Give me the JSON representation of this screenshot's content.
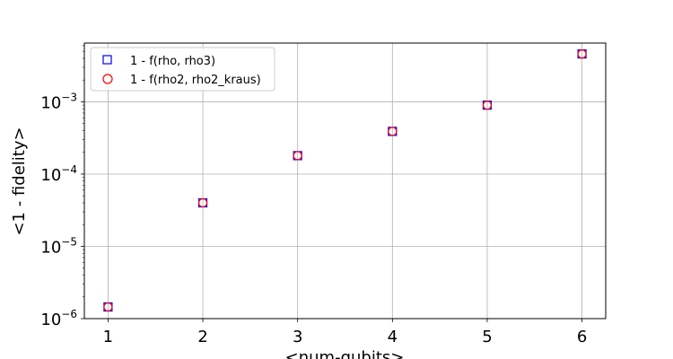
{
  "chart_data": {
    "type": "scatter",
    "xlabel": "<num-qubits>",
    "ylabel": "<1 - fidelity>",
    "x_ticks": [
      1,
      2,
      3,
      4,
      5,
      6
    ],
    "x_range": [
      0.75,
      6.25
    ],
    "y_scale": "log",
    "y_range": [
      1e-06,
      0.0065
    ],
    "y_ticks": [
      {
        "value": 1e-06,
        "base": "10",
        "exp": "−6"
      },
      {
        "value": 1e-05,
        "base": "10",
        "exp": "−5"
      },
      {
        "value": 0.0001,
        "base": "10",
        "exp": "−4"
      },
      {
        "value": 0.001,
        "base": "10",
        "exp": "−3"
      }
    ],
    "grid": true,
    "legend_position": "top-left",
    "series": [
      {
        "name": "1 - f(rho, rho3)",
        "marker": "square",
        "color": "#0000ff",
        "x": [
          1,
          2,
          3,
          4,
          5,
          6
        ],
        "y": [
          1.45e-06,
          4e-05,
          0.00018,
          0.00039,
          0.0009,
          0.0046
        ]
      },
      {
        "name": "1 - f(rho2, rho2_kraus)",
        "marker": "circle",
        "color": "#ff0000",
        "x": [
          1,
          2,
          3,
          4,
          5,
          6
        ],
        "y": [
          1.45e-06,
          4e-05,
          0.00018,
          0.00039,
          0.0009,
          0.0046
        ]
      }
    ]
  }
}
